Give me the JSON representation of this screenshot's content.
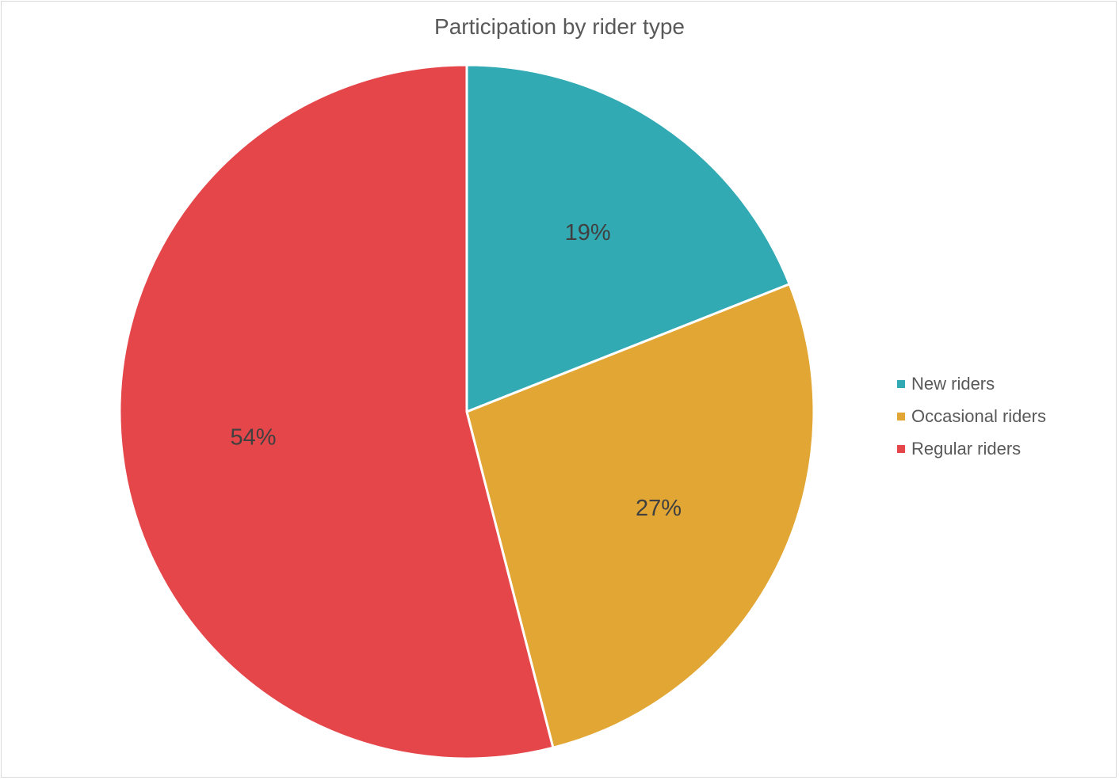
{
  "chart_data": {
    "type": "pie",
    "title": "Participation by rider type",
    "categories": [
      "New riders",
      "Occasional riders",
      "Regular riders"
    ],
    "values": [
      19,
      27,
      54
    ],
    "value_labels": [
      "19%",
      "27%",
      "54%"
    ],
    "colors": [
      "#31aab4",
      "#e1a634",
      "#e5464a"
    ],
    "legend_position": "right",
    "start_angle": "top, clockwise"
  }
}
